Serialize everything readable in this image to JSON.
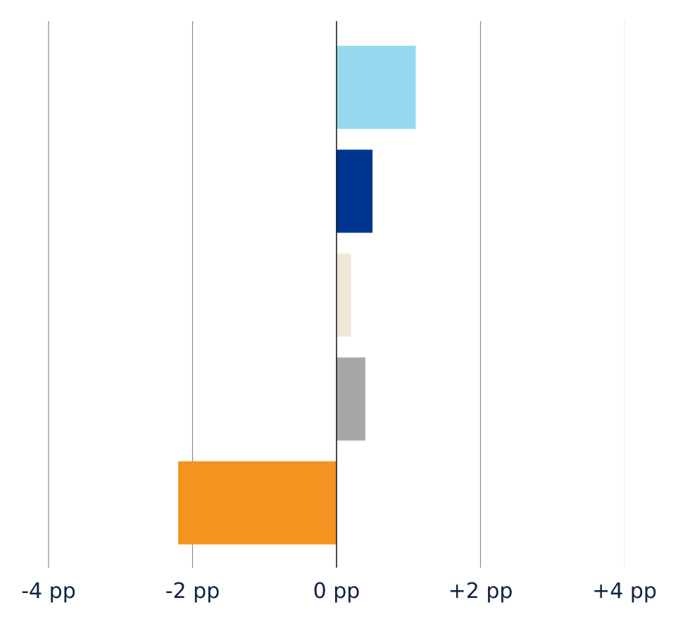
{
  "chart_data": {
    "type": "bar",
    "orientation": "horizontal",
    "title": "",
    "xlabel": "",
    "ylabel": "",
    "xlim": [
      -4,
      4
    ],
    "x_ticks": [
      -4,
      -2,
      0,
      2,
      4
    ],
    "x_tick_labels": [
      "-4 pp",
      "-2 pp",
      "0 pp",
      "+2 pp",
      "+4 pp"
    ],
    "grid": true,
    "legend": "none",
    "values": [
      1.1,
      0.5,
      0.2,
      0.4,
      -2.2
    ],
    "colors": [
      "#97d9ee",
      "#003591",
      "#f2e6d7",
      "#a7a7a7",
      "#f59320"
    ]
  }
}
